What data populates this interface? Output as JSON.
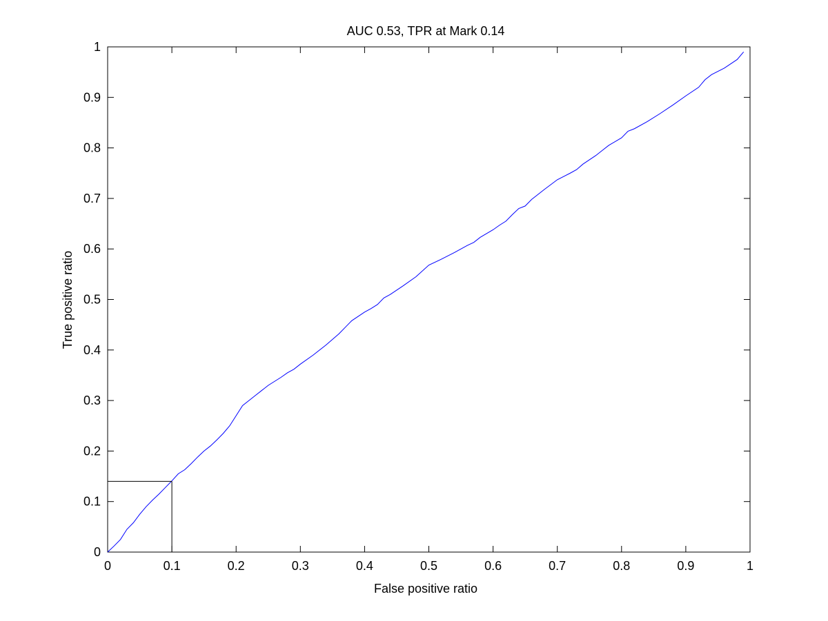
{
  "chart_data": {
    "type": "line",
    "title": "AUC 0.53, TPR at Mark 0.14",
    "xlabel": "False positive ratio",
    "ylabel": "True positive ratio",
    "xlim": [
      0,
      1
    ],
    "ylim": [
      0,
      1
    ],
    "xticks": [
      0,
      0.1,
      0.2,
      0.3,
      0.4,
      0.5,
      0.6,
      0.7,
      0.8,
      0.9,
      1
    ],
    "yticks": [
      0,
      0.1,
      0.2,
      0.3,
      0.4,
      0.5,
      0.6,
      0.7,
      0.8,
      0.9,
      1
    ],
    "xtick_labels": [
      "0",
      "0.1",
      "0.2",
      "0.3",
      "0.4",
      "0.5",
      "0.6",
      "0.7",
      "0.8",
      "0.9",
      "1"
    ],
    "ytick_labels": [
      "0",
      "0.1",
      "0.2",
      "0.3",
      "0.4",
      "0.5",
      "0.6",
      "0.7",
      "0.8",
      "0.9",
      "1"
    ],
    "grid": false,
    "line_color": "#0000ff",
    "axes_color": "#000000",
    "series": [
      {
        "x": [
          0,
          0.01,
          0.02,
          0.03,
          0.04,
          0.05,
          0.06,
          0.07,
          0.08,
          0.09,
          0.1,
          0.11,
          0.12,
          0.13,
          0.14,
          0.15,
          0.16,
          0.17,
          0.18,
          0.19,
          0.2,
          0.21,
          0.22,
          0.23,
          0.24,
          0.25,
          0.26,
          0.27,
          0.28,
          0.29,
          0.3,
          0.32,
          0.34,
          0.36,
          0.37,
          0.38,
          0.4,
          0.41,
          0.42,
          0.43,
          0.44,
          0.46,
          0.48,
          0.5,
          0.52,
          0.54,
          0.56,
          0.57,
          0.58,
          0.6,
          0.61,
          0.62,
          0.63,
          0.64,
          0.65,
          0.66,
          0.68,
          0.7,
          0.72,
          0.73,
          0.74,
          0.76,
          0.77,
          0.78,
          0.8,
          0.81,
          0.82,
          0.84,
          0.86,
          0.88,
          0.9,
          0.92,
          0.93,
          0.94,
          0.96,
          0.98,
          0.99
        ],
        "y": [
          0,
          0.012,
          0.025,
          0.045,
          0.058,
          0.075,
          0.09,
          0.103,
          0.115,
          0.128,
          0.141,
          0.155,
          0.163,
          0.175,
          0.188,
          0.2,
          0.21,
          0.222,
          0.235,
          0.25,
          0.27,
          0.29,
          0.3,
          0.31,
          0.32,
          0.33,
          0.338,
          0.346,
          0.355,
          0.362,
          0.372,
          0.39,
          0.41,
          0.432,
          0.445,
          0.458,
          0.475,
          0.482,
          0.49,
          0.503,
          0.51,
          0.527,
          0.545,
          0.568,
          0.58,
          0.593,
          0.607,
          0.613,
          0.623,
          0.638,
          0.647,
          0.655,
          0.668,
          0.68,
          0.685,
          0.698,
          0.718,
          0.737,
          0.75,
          0.757,
          0.768,
          0.785,
          0.795,
          0.805,
          0.82,
          0.833,
          0.838,
          0.852,
          0.868,
          0.885,
          0.903,
          0.92,
          0.935,
          0.945,
          0.958,
          0.975,
          0.99
        ]
      }
    ],
    "mark": {
      "x": 0.1,
      "y": 0.14
    }
  }
}
